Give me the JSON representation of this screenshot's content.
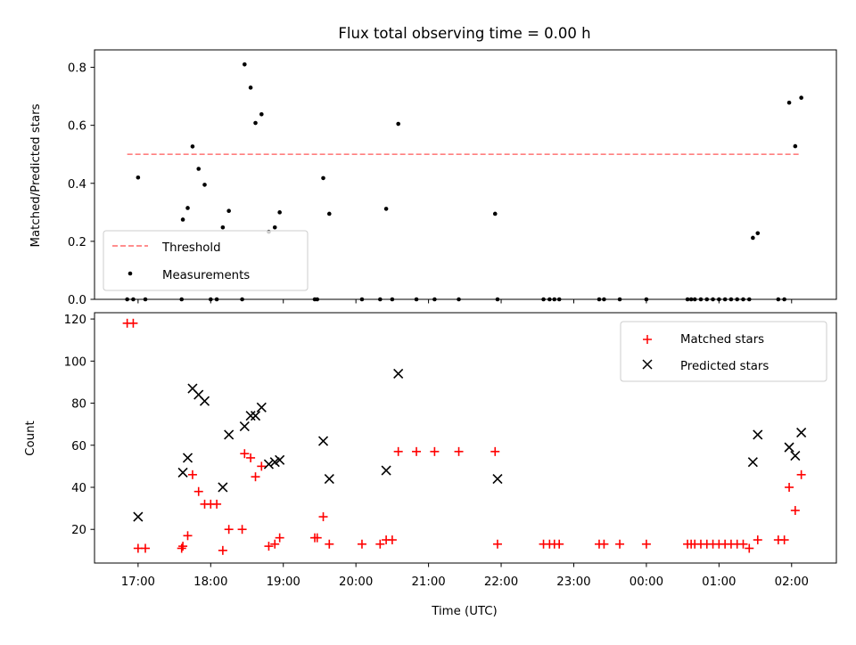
{
  "chart_data": [
    {
      "type": "scatter",
      "title": "Flux total observing time = 0.00 h",
      "xlabel": "",
      "ylabel": "Matched/Predicted stars",
      "xlim": [
        "16:24",
        "02:37"
      ],
      "ylim": [
        0,
        0.86
      ],
      "yticks": [
        0.0,
        0.2,
        0.4,
        0.6,
        0.8
      ],
      "ytick_labels": [
        "0.0",
        "0.2",
        "0.4",
        "0.6",
        "0.8"
      ],
      "legend": {
        "placement": "lower-left",
        "entries": [
          "Threshold",
          "Measurements"
        ]
      },
      "series": [
        {
          "name": "Threshold",
          "kind": "dashed-line",
          "color": "#ff7f7f",
          "x": [
            "16:51",
            "02:08"
          ],
          "y": [
            0.5,
            0.5
          ]
        },
        {
          "name": "Measurements",
          "kind": "points",
          "color": "#000000",
          "points": [
            [
              "16:51",
              0.0
            ],
            [
              "16:56",
              0.0
            ],
            [
              "17:00",
              0.42
            ],
            [
              "17:06",
              0.0
            ],
            [
              "17:36",
              0.0
            ],
            [
              "17:37",
              0.275
            ],
            [
              "17:41",
              0.315
            ],
            [
              "17:45",
              0.527
            ],
            [
              "17:50",
              0.45
            ],
            [
              "17:55",
              0.395
            ],
            [
              "18:00",
              0.0
            ],
            [
              "18:05",
              0.0
            ],
            [
              "18:10",
              0.248
            ],
            [
              "18:15",
              0.305
            ],
            [
              "18:26",
              0.0
            ],
            [
              "18:28",
              0.81
            ],
            [
              "18:33",
              0.73
            ],
            [
              "18:37",
              0.608
            ],
            [
              "18:42",
              0.638
            ],
            [
              "18:48",
              0.233
            ],
            [
              "18:53",
              0.248
            ],
            [
              "18:57",
              0.3
            ],
            [
              "19:26",
              0.0
            ],
            [
              "19:28",
              0.0
            ],
            [
              "19:33",
              0.418
            ],
            [
              "19:38",
              0.295
            ],
            [
              "20:05",
              0.0
            ],
            [
              "20:20",
              0.0
            ],
            [
              "20:25",
              0.312
            ],
            [
              "20:30",
              0.0
            ],
            [
              "20:35",
              0.605
            ],
            [
              "20:50",
              0.0
            ],
            [
              "21:05",
              0.0
            ],
            [
              "21:25",
              0.0
            ],
            [
              "21:55",
              0.295
            ],
            [
              "21:57",
              0.0
            ],
            [
              "22:35",
              0.0
            ],
            [
              "22:40",
              0.0
            ],
            [
              "22:44",
              0.0
            ],
            [
              "22:48",
              0.0
            ],
            [
              "23:21",
              0.0
            ],
            [
              "23:25",
              0.0
            ],
            [
              "23:38",
              0.0
            ],
            [
              "00:00",
              0.0
            ],
            [
              "00:34",
              0.0
            ],
            [
              "00:37",
              0.0
            ],
            [
              "00:40",
              0.0
            ],
            [
              "00:45",
              0.0
            ],
            [
              "00:50",
              0.0
            ],
            [
              "00:55",
              0.0
            ],
            [
              "01:00",
              0.0
            ],
            [
              "01:05",
              0.0
            ],
            [
              "01:10",
              0.0
            ],
            [
              "01:15",
              0.0
            ],
            [
              "01:20",
              0.0
            ],
            [
              "01:25",
              0.0
            ],
            [
              "01:28",
              0.212
            ],
            [
              "01:32",
              0.228
            ],
            [
              "01:49",
              0.0
            ],
            [
              "01:54",
              0.0
            ],
            [
              "01:58",
              0.678
            ],
            [
              "02:03",
              0.528
            ],
            [
              "02:08",
              0.695
            ]
          ]
        }
      ]
    },
    {
      "type": "scatter",
      "title": "",
      "xlabel": "Time (UTC)",
      "ylabel": "Count",
      "xlim": [
        "16:24",
        "02:37"
      ],
      "ylim": [
        4,
        123
      ],
      "yticks": [
        20,
        40,
        60,
        80,
        100,
        120
      ],
      "ytick_labels": [
        "20",
        "40",
        "60",
        "80",
        "100",
        "120"
      ],
      "xticks": [
        "17:00",
        "18:00",
        "19:00",
        "20:00",
        "21:00",
        "22:00",
        "23:00",
        "00:00",
        "01:00",
        "02:00"
      ],
      "legend": {
        "placement": "upper-right",
        "entries": [
          "Matched stars",
          "Predicted stars"
        ]
      },
      "series": [
        {
          "name": "Matched stars",
          "marker": "plus",
          "color": "#ff0000",
          "points": [
            [
              "16:51",
              118
            ],
            [
              "16:56",
              118
            ],
            [
              "17:00",
              11
            ],
            [
              "17:06",
              11
            ],
            [
              "17:36",
              11
            ],
            [
              "17:37",
              12
            ],
            [
              "17:41",
              17
            ],
            [
              "17:45",
              46
            ],
            [
              "17:50",
              38
            ],
            [
              "17:55",
              32
            ],
            [
              "18:00",
              32
            ],
            [
              "18:05",
              32
            ],
            [
              "18:10",
              10
            ],
            [
              "18:15",
              20
            ],
            [
              "18:26",
              20
            ],
            [
              "18:28",
              56
            ],
            [
              "18:33",
              54
            ],
            [
              "18:37",
              45
            ],
            [
              "18:42",
              50
            ],
            [
              "18:48",
              12
            ],
            [
              "18:53",
              13
            ],
            [
              "18:57",
              16
            ],
            [
              "19:26",
              16
            ],
            [
              "19:28",
              16
            ],
            [
              "19:33",
              26
            ],
            [
              "19:38",
              13
            ],
            [
              "20:05",
              13
            ],
            [
              "20:20",
              13
            ],
            [
              "20:25",
              15
            ],
            [
              "20:30",
              15
            ],
            [
              "20:35",
              57
            ],
            [
              "20:50",
              57
            ],
            [
              "21:05",
              57
            ],
            [
              "21:25",
              57
            ],
            [
              "21:55",
              57
            ],
            [
              "21:57",
              13
            ],
            [
              "22:35",
              13
            ],
            [
              "22:40",
              13
            ],
            [
              "22:44",
              13
            ],
            [
              "22:48",
              13
            ],
            [
              "23:21",
              13
            ],
            [
              "23:25",
              13
            ],
            [
              "23:38",
              13
            ],
            [
              "00:00",
              13
            ],
            [
              "00:34",
              13
            ],
            [
              "00:37",
              13
            ],
            [
              "00:40",
              13
            ],
            [
              "00:45",
              13
            ],
            [
              "00:50",
              13
            ],
            [
              "00:55",
              13
            ],
            [
              "01:00",
              13
            ],
            [
              "01:05",
              13
            ],
            [
              "01:10",
              13
            ],
            [
              "01:15",
              13
            ],
            [
              "01:20",
              13
            ],
            [
              "01:25",
              11
            ],
            [
              "01:32",
              15
            ],
            [
              "01:49",
              15
            ],
            [
              "01:54",
              15
            ],
            [
              "01:58",
              40
            ],
            [
              "02:03",
              29
            ],
            [
              "02:08",
              46
            ]
          ]
        },
        {
          "name": "Predicted stars",
          "marker": "x",
          "color": "#000000",
          "points": [
            [
              "17:00",
              26
            ],
            [
              "17:37",
              47
            ],
            [
              "17:41",
              54
            ],
            [
              "17:45",
              87
            ],
            [
              "17:50",
              84
            ],
            [
              "17:55",
              81
            ],
            [
              "18:10",
              40
            ],
            [
              "18:15",
              65
            ],
            [
              "18:28",
              69
            ],
            [
              "18:33",
              74
            ],
            [
              "18:37",
              74
            ],
            [
              "18:42",
              78
            ],
            [
              "18:48",
              51
            ],
            [
              "18:53",
              52
            ],
            [
              "18:57",
              53
            ],
            [
              "19:33",
              62
            ],
            [
              "19:38",
              44
            ],
            [
              "20:25",
              48
            ],
            [
              "20:35",
              94
            ],
            [
              "21:57",
              44
            ],
            [
              "01:28",
              52
            ],
            [
              "01:32",
              65
            ],
            [
              "01:58",
              59
            ],
            [
              "02:03",
              55
            ],
            [
              "02:08",
              66
            ]
          ]
        }
      ]
    }
  ]
}
